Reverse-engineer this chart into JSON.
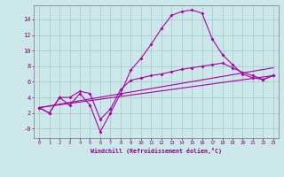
{
  "xlabel": "Windchill (Refroidissement éolien,°C)",
  "background_color": "#cce8ea",
  "grid_color": "#aacccc",
  "line_color": "#aa00aa",
  "xlim": [
    -0.5,
    23.5
  ],
  "ylim": [
    -1.2,
    15.8
  ],
  "yticks": [
    0,
    2,
    4,
    6,
    8,
    10,
    12,
    14
  ],
  "ytick_labels": [
    "-0",
    "2",
    "4",
    "6",
    "8",
    "10",
    "12",
    "14"
  ],
  "xticks": [
    0,
    1,
    2,
    3,
    4,
    5,
    6,
    7,
    8,
    9,
    10,
    11,
    12,
    13,
    14,
    15,
    16,
    17,
    18,
    19,
    20,
    21,
    22,
    23
  ],
  "line1_x": [
    0,
    1,
    2,
    3,
    4,
    5,
    6,
    7,
    8,
    9,
    10,
    11,
    12,
    13,
    14,
    15,
    16,
    17,
    18,
    19,
    20,
    21,
    22,
    23
  ],
  "line1_y": [
    2.7,
    2.0,
    4.0,
    3.0,
    4.5,
    3.0,
    -0.4,
    2.0,
    4.5,
    7.5,
    9.0,
    10.8,
    12.8,
    14.5,
    15.0,
    15.2,
    14.8,
    11.5,
    9.5,
    8.2,
    7.0,
    6.5,
    6.3,
    6.8
  ],
  "line2_x": [
    0,
    1,
    2,
    3,
    4,
    5,
    6,
    7,
    8,
    9,
    10,
    11,
    12,
    13,
    14,
    15,
    16,
    17,
    18,
    19,
    20,
    21,
    22,
    23
  ],
  "line2_y": [
    2.7,
    2.0,
    4.0,
    4.0,
    4.8,
    4.5,
    1.2,
    2.5,
    5.0,
    6.2,
    6.5,
    6.8,
    7.0,
    7.3,
    7.6,
    7.8,
    8.0,
    8.2,
    8.4,
    7.8,
    7.2,
    6.8,
    6.3,
    6.8
  ],
  "line3_x": [
    0,
    23
  ],
  "line3_y": [
    2.7,
    6.8
  ],
  "line4_x": [
    0,
    23
  ],
  "line4_y": [
    2.7,
    7.8
  ]
}
